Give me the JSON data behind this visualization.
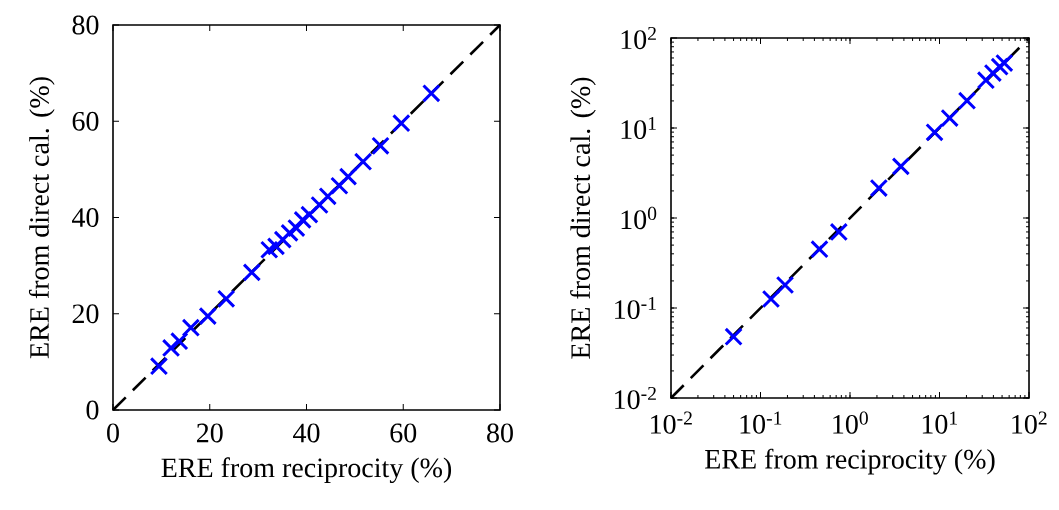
{
  "chart_data": [
    {
      "type": "scatter",
      "xlabel": "ERE from reciprocity (%)",
      "ylabel": "ERE from direct cal. (%)",
      "xlim": [
        0,
        80
      ],
      "ylim": [
        0,
        80
      ],
      "xticks": [
        0,
        20,
        40,
        60,
        80
      ],
      "yticks": [
        0,
        20,
        40,
        60,
        80
      ],
      "grid": false,
      "marker": "cross",
      "series": [
        {
          "color": "#0000ff",
          "x": [
            65.8,
            59.6,
            55.3,
            51.7,
            48.6,
            46.8,
            44.4,
            42.7,
            40.6,
            39.2,
            37.9,
            36.5,
            35.1,
            33.7,
            32.3,
            28.7,
            23.4,
            19.6,
            16.1,
            13.7,
            12.0,
            9.5
          ],
          "values": [
            65.8,
            59.6,
            54.9,
            51.6,
            48.5,
            46.6,
            44.4,
            42.6,
            40.6,
            39.5,
            37.8,
            36.8,
            35.4,
            34.0,
            33.3,
            28.6,
            23.1,
            19.5,
            17.1,
            14.3,
            12.9,
            9.1
          ]
        },
        {
          "type": "line",
          "color": "#000000",
          "line_style": "dashed",
          "marker": "none",
          "x": [
            0,
            80
          ],
          "values": [
            0,
            80
          ]
        }
      ]
    },
    {
      "type": "scatter",
      "xlabel": "ERE from reciprocity (%)",
      "ylabel": "ERE from direct cal. (%)",
      "log": "xy",
      "xlim": [
        0.01,
        100
      ],
      "ylim": [
        0.01,
        100
      ],
      "xticks": [
        {
          "value": 0.01,
          "label": "10$^{-2}$"
        },
        {
          "value": 0.1,
          "label": "10$^{-1}$"
        },
        {
          "value": 1,
          "label": "10$^{0}$"
        },
        {
          "value": 10,
          "label": "10$^{1}$"
        },
        {
          "value": 100,
          "label": "10$^{2}$"
        }
      ],
      "yticks": [
        {
          "value": 0.01,
          "label": "10$^{-2}$"
        },
        {
          "value": 0.1,
          "label": "10$^{-1}$"
        },
        {
          "value": 1,
          "label": "10$^{0}$"
        },
        {
          "value": 10,
          "label": "10$^{1}$"
        },
        {
          "value": 100,
          "label": "10$^{2}$"
        }
      ],
      "grid": false,
      "marker": "cross",
      "series": [
        {
          "color": "#0000ff",
          "x": [
            0.05,
            0.131,
            0.188,
            0.456,
            0.75,
            2.1,
            3.7,
            8.8,
            13,
            20.3,
            33,
            39.5,
            47,
            53
          ],
          "values": [
            0.048,
            0.126,
            0.18,
            0.45,
            0.7,
            2.15,
            3.75,
            8.95,
            12.9,
            20.1,
            34,
            40.8,
            48,
            52.7
          ]
        },
        {
          "type": "line",
          "color": "#000000",
          "line_style": "dashed",
          "marker": "none",
          "x": [
            0.01,
            100
          ],
          "values": [
            0.01,
            100
          ]
        }
      ]
    }
  ]
}
